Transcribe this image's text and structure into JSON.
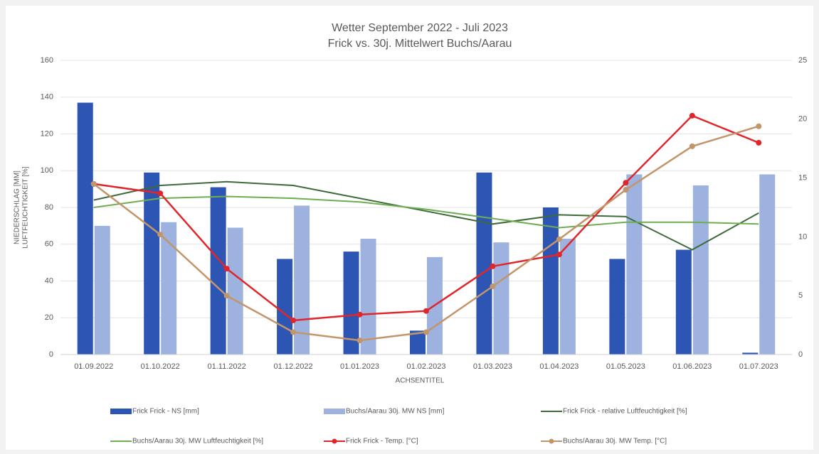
{
  "chart_data": {
    "type": "bar",
    "title": "Wetter September 2022 - Juli 2023",
    "subtitle": "Frick vs. 30j. Mittelwert Buchs/Aarau",
    "y_label": [
      "NIEDERSCHLAG [MM]",
      "LUFTFEUCHTIGKEIT [%]"
    ],
    "x_label": "ACHSENTITEL",
    "categories": [
      "01.09.2022",
      "01.10.2022",
      "01.11.2022",
      "01.12.2022",
      "01.01.2023",
      "01.02.2023",
      "01.03.2023",
      "01.04.2023",
      "01.05.2023",
      "01.06.2023",
      "01.07.2023"
    ],
    "ylim": [
      0,
      160
    ],
    "yticks": [
      0,
      20,
      40,
      60,
      80,
      100,
      120,
      140,
      160
    ],
    "y2lim": [
      0,
      25
    ],
    "y2ticks": [
      0,
      5,
      10,
      15,
      20,
      25
    ],
    "series": [
      {
        "name": "Frick Frick - NS [mm]",
        "kind": "bar",
        "color": "#2d55b4",
        "values": [
          137,
          99,
          91,
          52,
          56,
          13,
          99,
          80,
          52,
          57,
          1
        ]
      },
      {
        "name": "Buchs/Aarau 30j. MW NS [mm]",
        "kind": "bar",
        "color": "#9db2de",
        "values": [
          70,
          72,
          69,
          81,
          63,
          53,
          61,
          63,
          98,
          92,
          98
        ]
      },
      {
        "name": "Frick Frick - relative Luftfeuchtigkeit [%]",
        "kind": "line",
        "color": "#3f6a3a",
        "values": [
          84,
          92,
          94,
          92,
          85,
          78,
          71,
          76,
          75,
          57,
          77
        ]
      },
      {
        "name": "Buchs/Aarau 30j.  MW Luftfeuchtigkeit [%]",
        "kind": "line",
        "color": "#6fad52",
        "values": [
          80,
          85,
          86,
          85,
          83,
          79,
          74,
          69,
          72,
          72,
          71
        ]
      },
      {
        "name": "Frick Frick - Temp. [°C]",
        "kind": "line",
        "marker": true,
        "axis": "y2",
        "color": "#e0262a",
        "values": [
          14.5,
          13.7,
          7.3,
          2.9,
          3.4,
          3.7,
          7.5,
          8.5,
          14.6,
          20.3,
          18.0
        ]
      },
      {
        "name": "Buchs/Aarau 30j. MW Temp. [°C]",
        "kind": "line",
        "marker": true,
        "axis": "y2",
        "color": "#c2956b",
        "values": [
          14.5,
          10.2,
          5.0,
          1.9,
          1.2,
          1.9,
          5.8,
          9.8,
          14.0,
          17.7,
          19.4
        ]
      }
    ]
  }
}
